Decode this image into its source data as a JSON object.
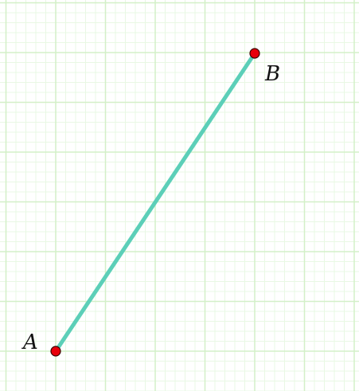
{
  "diagram": {
    "grid": {
      "minor_color": "#e9f8e4",
      "major_color": "#d3f0c8"
    },
    "segment": {
      "color": "#5ccfb8",
      "from": "A",
      "to": "B"
    },
    "points": [
      {
        "label": "A",
        "color": "#e8000b"
      },
      {
        "label": "B",
        "color": "#e8000b"
      }
    ]
  }
}
